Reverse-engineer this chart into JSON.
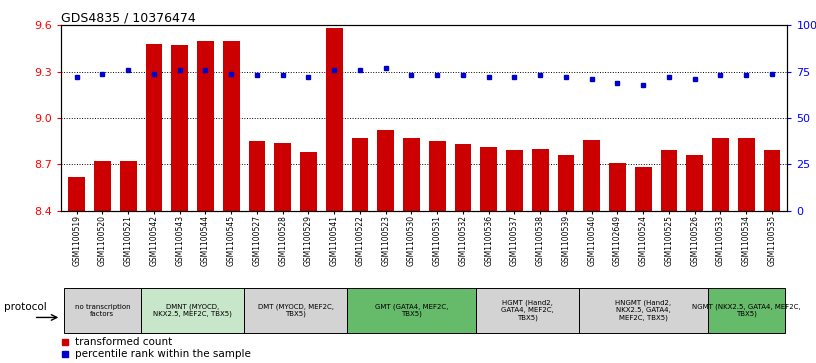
{
  "title": "GDS4835 / 10376474",
  "samples": [
    "GSM1100519",
    "GSM1100520",
    "GSM1100521",
    "GSM1100542",
    "GSM1100543",
    "GSM1100544",
    "GSM1100545",
    "GSM1100527",
    "GSM1100528",
    "GSM1100529",
    "GSM1100541",
    "GSM1100522",
    "GSM1100523",
    "GSM1100530",
    "GSM1100531",
    "GSM1100532",
    "GSM1100536",
    "GSM1100537",
    "GSM1100538",
    "GSM1100539",
    "GSM1100540",
    "GSM1102649",
    "GSM1100524",
    "GSM1100525",
    "GSM1100526",
    "GSM1100533",
    "GSM1100534",
    "GSM1100535"
  ],
  "bar_values": [
    8.62,
    8.72,
    8.72,
    9.48,
    9.47,
    9.5,
    9.5,
    8.85,
    8.84,
    8.78,
    9.58,
    8.87,
    8.92,
    8.87,
    8.85,
    8.83,
    8.81,
    8.79,
    8.8,
    8.76,
    8.86,
    8.71,
    8.68,
    8.79,
    8.76,
    8.87,
    8.87,
    8.79
  ],
  "percentile_values": [
    72,
    74,
    76,
    74,
    76,
    76,
    74,
    73,
    73,
    72,
    76,
    76,
    77,
    73,
    73,
    73,
    72,
    72,
    73,
    72,
    71,
    69,
    68,
    72,
    71,
    73,
    73,
    74
  ],
  "ylim_left": [
    8.4,
    9.6
  ],
  "ylim_right": [
    0,
    100
  ],
  "yticks_left": [
    8.4,
    8.7,
    9.0,
    9.3,
    9.6
  ],
  "yticks_right": [
    0,
    25,
    50,
    75,
    100
  ],
  "ytick_labels_right": [
    "0",
    "25",
    "50",
    "75",
    "100%"
  ],
  "bar_color": "#cc0000",
  "dot_color": "#0000cc",
  "protocol_groups": [
    {
      "label": "no transcription\nfactors",
      "start": 0,
      "end": 3,
      "color": "#d3d3d3"
    },
    {
      "label": "DMNT (MYOCD,\nNKX2.5, MEF2C, TBX5)",
      "start": 3,
      "end": 7,
      "color": "#c8e6c9"
    },
    {
      "label": "DMT (MYOCD, MEF2C,\nTBX5)",
      "start": 7,
      "end": 11,
      "color": "#d3d3d3"
    },
    {
      "label": "GMT (GATA4, MEF2C,\nTBX5)",
      "start": 11,
      "end": 16,
      "color": "#66bb6a"
    },
    {
      "label": "HGMT (Hand2,\nGATA4, MEF2C,\nTBX5)",
      "start": 16,
      "end": 20,
      "color": "#d3d3d3"
    },
    {
      "label": "HNGMT (Hand2,\nNKX2.5, GATA4,\nMEF2C, TBX5)",
      "start": 20,
      "end": 25,
      "color": "#d3d3d3"
    },
    {
      "label": "NGMT (NKX2.5, GATA4, MEF2C,\nTBX5)",
      "start": 25,
      "end": 28,
      "color": "#66bb6a"
    }
  ],
  "protocol_label": "protocol",
  "legend_items": [
    {
      "label": "transformed count",
      "color": "#cc0000"
    },
    {
      "label": "percentile rank within the sample",
      "color": "#0000cc"
    }
  ]
}
